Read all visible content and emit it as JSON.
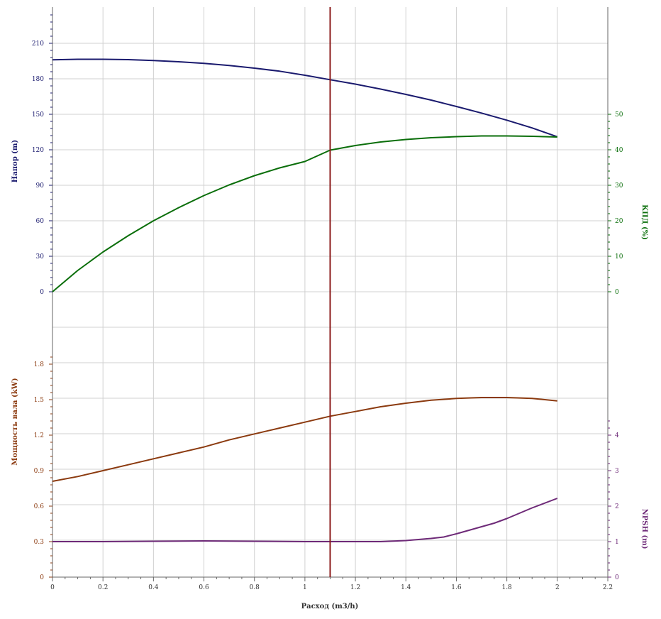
{
  "chart_data": {
    "type": "line",
    "x_label": "Расход (m3/h)",
    "x_ticks": [
      "0",
      "0.2",
      "0.4",
      "0.6",
      "0.8",
      "1",
      "1.2",
      "1.4",
      "1.6",
      "1.8",
      "2",
      "2.2"
    ],
    "xlim": [
      0,
      2.2
    ],
    "operating_point_x": 1.1,
    "colors": {
      "head": "#1a1a6e",
      "efficiency": "#0a6e0a",
      "power": "#8b3a0f",
      "npsh": "#6e2a78",
      "marker": "#8b1a1a",
      "grid": "#d0d0d0",
      "axis": "#666666"
    },
    "top": {
      "left_label": "Напор (m)",
      "right_label": "КПД (%)",
      "left_ticks": [
        "0",
        "30",
        "60",
        "90",
        "120",
        "150",
        "180",
        "210"
      ],
      "right_ticks": [
        "0",
        "10",
        "20",
        "30",
        "40",
        "50"
      ],
      "head": {
        "x": [
          0,
          0.1,
          0.2,
          0.3,
          0.4,
          0.5,
          0.6,
          0.7,
          0.8,
          0.9,
          1.0,
          1.1,
          1.2,
          1.3,
          1.4,
          1.5,
          1.6,
          1.7,
          1.8,
          1.9,
          2.0
        ],
        "y": [
          196,
          196.5,
          196.5,
          196.2,
          195.5,
          194.4,
          193,
          191.2,
          189,
          186.4,
          183,
          179.2,
          175.5,
          171.3,
          166.8,
          162,
          156.6,
          151,
          145,
          138.5,
          131
        ]
      },
      "efficiency": {
        "x": [
          0,
          0.1,
          0.2,
          0.3,
          0.4,
          0.5,
          0.6,
          0.7,
          0.8,
          0.9,
          1.0,
          1.1,
          1.2,
          1.3,
          1.4,
          1.5,
          1.6,
          1.7,
          1.8,
          1.9,
          2.0
        ],
        "y": [
          0,
          6,
          11.2,
          15.8,
          20,
          23.7,
          27.1,
          30.1,
          32.7,
          34.9,
          36.7,
          39.9,
          41.2,
          42.2,
          42.9,
          43.4,
          43.7,
          43.9,
          43.9,
          43.8,
          43.6
        ]
      }
    },
    "bottom": {
      "left_label": "Мощность вала (kW)",
      "right_label": "NPSH (m)",
      "left_ticks": [
        "0",
        "0.3",
        "0.6",
        "0.9",
        "1.2",
        "1.5",
        "1.8"
      ],
      "right_ticks": [
        "0",
        "1",
        "2",
        "3",
        "4"
      ],
      "power": {
        "x": [
          0,
          0.1,
          0.2,
          0.3,
          0.4,
          0.5,
          0.6,
          0.7,
          0.8,
          0.9,
          1.0,
          1.1,
          1.2,
          1.3,
          1.4,
          1.5,
          1.6,
          1.7,
          1.8,
          1.9,
          2.0
        ],
        "y": [
          0.81,
          0.85,
          0.9,
          0.95,
          1.0,
          1.05,
          1.1,
          1.16,
          1.21,
          1.26,
          1.31,
          1.36,
          1.4,
          1.44,
          1.47,
          1.495,
          1.51,
          1.518,
          1.518,
          1.51,
          1.49
        ]
      },
      "npsh": {
        "x": [
          0,
          0.2,
          0.4,
          0.6,
          0.8,
          1.0,
          1.1,
          1.2,
          1.3,
          1.4,
          1.5,
          1.55,
          1.6,
          1.7,
          1.75,
          1.8,
          1.9,
          2.0
        ],
        "y": [
          1.0,
          1.0,
          1.01,
          1.02,
          1.01,
          1.0,
          1.0,
          1.0,
          1.0,
          1.03,
          1.09,
          1.13,
          1.22,
          1.42,
          1.52,
          1.65,
          1.95,
          2.22
        ]
      }
    }
  }
}
